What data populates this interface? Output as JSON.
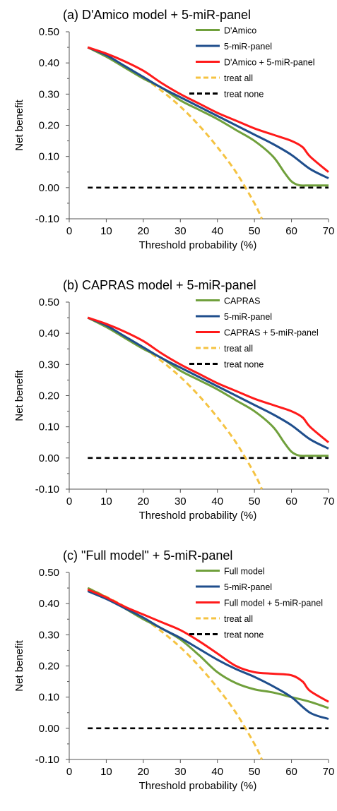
{
  "chart_data": [
    {
      "type": "line",
      "title": "(a) D'Amico model + 5-miR-panel",
      "xlabel": "Threshold probability (%)",
      "ylabel": "Net benefit",
      "xlim": [
        0,
        70
      ],
      "ylim": [
        -0.1,
        0.5
      ],
      "xticks": [
        "0",
        "10",
        "20",
        "30",
        "40",
        "50",
        "60",
        "70"
      ],
      "yticks": [
        "-0.10",
        "0.00",
        "0.10",
        "0.20",
        "0.30",
        "0.40",
        "0.50"
      ],
      "grid": false,
      "legend_position": "top-right",
      "series": [
        {
          "name": "D'Amico",
          "color": "#70a03c",
          "dash": "solid",
          "x": [
            5,
            10,
            15,
            20,
            25,
            30,
            35,
            40,
            45,
            50,
            55,
            58,
            60,
            62,
            65,
            70
          ],
          "y": [
            0.45,
            0.42,
            0.385,
            0.35,
            0.32,
            0.28,
            0.25,
            0.22,
            0.185,
            0.15,
            0.1,
            0.05,
            0.02,
            0.008,
            0.007,
            0.007
          ]
        },
        {
          "name": "5-miR-panel",
          "color": "#1f4e8c",
          "dash": "solid",
          "x": [
            5,
            10,
            15,
            20,
            25,
            30,
            35,
            40,
            45,
            50,
            55,
            60,
            65,
            70
          ],
          "y": [
            0.45,
            0.425,
            0.39,
            0.355,
            0.32,
            0.29,
            0.26,
            0.23,
            0.2,
            0.17,
            0.14,
            0.105,
            0.06,
            0.03
          ]
        },
        {
          "name": "D'Amico + 5-miR-panel",
          "color": "#ff1a1a",
          "dash": "solid",
          "x": [
            5,
            10,
            15,
            20,
            25,
            30,
            35,
            40,
            45,
            50,
            55,
            60,
            63,
            65,
            70
          ],
          "y": [
            0.45,
            0.43,
            0.405,
            0.375,
            0.335,
            0.3,
            0.27,
            0.24,
            0.215,
            0.19,
            0.17,
            0.15,
            0.13,
            0.1,
            0.05
          ]
        },
        {
          "name": "treat all",
          "color": "#f5c342",
          "dash": "dashed",
          "x": [
            5,
            10,
            15,
            20,
            25,
            30,
            35,
            40,
            45,
            50,
            52
          ],
          "y": [
            0.45,
            0.422,
            0.39,
            0.353,
            0.31,
            0.26,
            0.2,
            0.13,
            0.05,
            -0.05,
            -0.1
          ]
        },
        {
          "name": "treat none",
          "color": "#000000",
          "dash": "dashed",
          "x": [
            5,
            70
          ],
          "y": [
            0.0,
            0.0
          ]
        }
      ]
    },
    {
      "type": "line",
      "title": "(b) CAPRAS model + 5-miR-panel",
      "xlabel": "Threshold probability (%)",
      "ylabel": "Net benefit",
      "xlim": [
        0,
        70
      ],
      "ylim": [
        -0.1,
        0.5
      ],
      "xticks": [
        "0",
        "10",
        "20",
        "30",
        "40",
        "50",
        "60",
        "70"
      ],
      "yticks": [
        "-0.10",
        "0.00",
        "0.10",
        "0.20",
        "0.30",
        "0.40",
        "0.50"
      ],
      "grid": false,
      "legend_position": "top-right",
      "series": [
        {
          "name": "CAPRAS",
          "color": "#70a03c",
          "dash": "solid",
          "x": [
            5,
            10,
            15,
            20,
            25,
            30,
            35,
            40,
            45,
            50,
            55,
            58,
            60,
            62,
            65,
            70
          ],
          "y": [
            0.45,
            0.42,
            0.385,
            0.35,
            0.32,
            0.28,
            0.25,
            0.22,
            0.185,
            0.15,
            0.1,
            0.05,
            0.02,
            0.008,
            0.007,
            0.007
          ]
        },
        {
          "name": "5-miR-panel",
          "color": "#1f4e8c",
          "dash": "solid",
          "x": [
            5,
            10,
            15,
            20,
            25,
            30,
            35,
            40,
            45,
            50,
            55,
            60,
            65,
            70
          ],
          "y": [
            0.45,
            0.425,
            0.39,
            0.355,
            0.32,
            0.29,
            0.26,
            0.23,
            0.2,
            0.17,
            0.14,
            0.105,
            0.06,
            0.03
          ]
        },
        {
          "name": "CAPRAS + 5-miR-panel",
          "color": "#ff1a1a",
          "dash": "solid",
          "x": [
            5,
            10,
            15,
            20,
            25,
            30,
            35,
            40,
            45,
            50,
            55,
            60,
            63,
            65,
            70
          ],
          "y": [
            0.45,
            0.43,
            0.405,
            0.375,
            0.335,
            0.3,
            0.27,
            0.24,
            0.215,
            0.19,
            0.17,
            0.15,
            0.13,
            0.1,
            0.05
          ]
        },
        {
          "name": "treat all",
          "color": "#f5c342",
          "dash": "dashed",
          "x": [
            5,
            10,
            15,
            20,
            25,
            30,
            35,
            40,
            45,
            50,
            52
          ],
          "y": [
            0.45,
            0.422,
            0.39,
            0.353,
            0.31,
            0.26,
            0.2,
            0.13,
            0.05,
            -0.05,
            -0.1
          ]
        },
        {
          "name": "treat none",
          "color": "#000000",
          "dash": "dashed",
          "x": [
            5,
            70
          ],
          "y": [
            0.0,
            0.0
          ]
        }
      ]
    },
    {
      "type": "line",
      "title": "(c) \"Full model\" + 5-miR-panel",
      "xlabel": "Threshold probability (%)",
      "ylabel": "Net benefit",
      "xlim": [
        0,
        70
      ],
      "ylim": [
        -0.1,
        0.5
      ],
      "xticks": [
        "0",
        "10",
        "20",
        "30",
        "40",
        "50",
        "60",
        "70"
      ],
      "yticks": [
        "-0.10",
        "0.00",
        "0.10",
        "0.20",
        "0.30",
        "0.40",
        "0.50"
      ],
      "grid": false,
      "legend_position": "top-right",
      "series": [
        {
          "name": "Full model",
          "color": "#70a03c",
          "dash": "solid",
          "x": [
            5,
            10,
            15,
            20,
            25,
            30,
            35,
            40,
            45,
            50,
            55,
            60,
            65,
            70
          ],
          "y": [
            0.45,
            0.42,
            0.385,
            0.35,
            0.32,
            0.285,
            0.235,
            0.18,
            0.145,
            0.125,
            0.115,
            0.1,
            0.085,
            0.065
          ]
        },
        {
          "name": "5-miR-panel",
          "color": "#1f4e8c",
          "dash": "solid",
          "x": [
            5,
            10,
            15,
            20,
            25,
            30,
            35,
            40,
            45,
            50,
            55,
            60,
            65,
            70
          ],
          "y": [
            0.44,
            0.415,
            0.385,
            0.355,
            0.32,
            0.29,
            0.255,
            0.22,
            0.19,
            0.165,
            0.135,
            0.1,
            0.05,
            0.03
          ]
        },
        {
          "name": "Full model + 5-miR-panel",
          "color": "#ff1a1a",
          "dash": "solid",
          "x": [
            5,
            10,
            15,
            20,
            25,
            30,
            35,
            40,
            45,
            50,
            55,
            60,
            63,
            65,
            70
          ],
          "y": [
            0.445,
            0.42,
            0.39,
            0.365,
            0.34,
            0.315,
            0.28,
            0.24,
            0.2,
            0.18,
            0.175,
            0.17,
            0.15,
            0.12,
            0.085
          ]
        },
        {
          "name": "treat all",
          "color": "#f5c342",
          "dash": "dashed",
          "x": [
            5,
            10,
            15,
            20,
            25,
            30,
            35,
            40,
            45,
            50,
            52
          ],
          "y": [
            0.45,
            0.422,
            0.39,
            0.353,
            0.31,
            0.26,
            0.2,
            0.13,
            0.05,
            -0.05,
            -0.1
          ]
        },
        {
          "name": "treat none",
          "color": "#000000",
          "dash": "dashed",
          "x": [
            5,
            70
          ],
          "y": [
            0.0,
            0.0
          ]
        }
      ]
    }
  ]
}
